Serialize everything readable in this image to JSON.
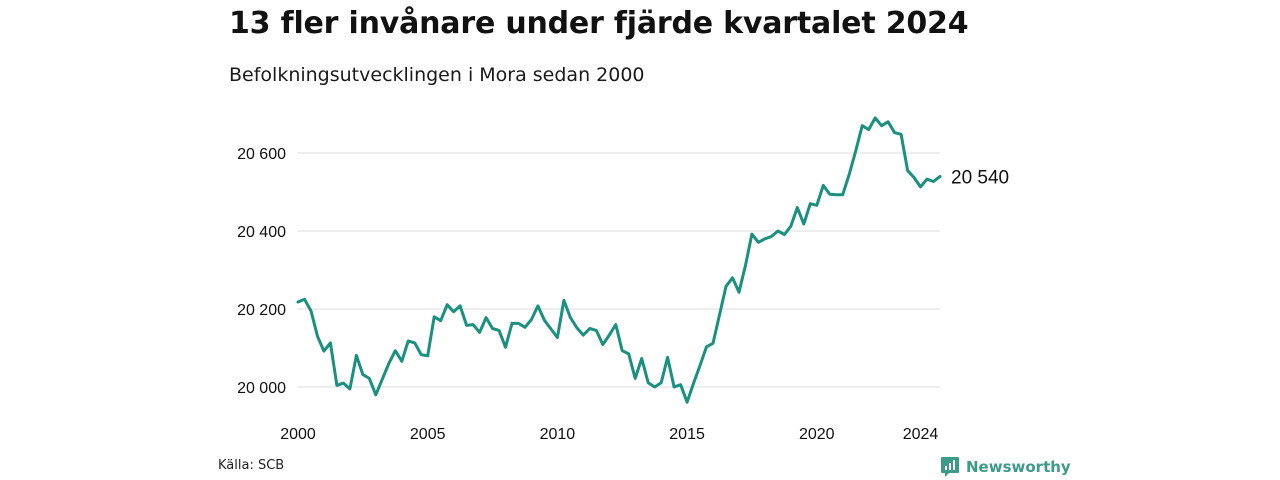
{
  "title": "13 fler invånare under fjärde kvartalet 2024",
  "subtitle": "Befolkningsutvecklingen i Mora sedan 2000",
  "source": "Källa: SCB",
  "brand": {
    "name": "Newsworthy",
    "icon": "newsworthy-logo-icon",
    "color": "#3d9b8a"
  },
  "colors": {
    "line": "#1a9080",
    "grid": "#dddddd"
  },
  "chart_data": {
    "type": "line",
    "title": "13 fler invånare under fjärde kvartalet 2024",
    "subtitle": "Befolkningsutvecklingen i Mora sedan 2000",
    "xlabel": "",
    "ylabel": "",
    "grid": true,
    "ylim": [
      19960,
      20690
    ],
    "xlim": [
      2000,
      2024.75
    ],
    "x_ticks": [
      2000,
      2005,
      2010,
      2015,
      2020,
      2024
    ],
    "x_tick_labels": [
      "2000",
      "2005",
      "2010",
      "2015",
      "2020",
      "2024"
    ],
    "y_ticks": [
      20000,
      20200,
      20400,
      20600
    ],
    "y_tick_labels": [
      "20 000",
      "20 200",
      "20 400",
      "20 600"
    ],
    "end_label": "20 540",
    "series": [
      {
        "x": [
          2000,
          2000.25,
          2000.5,
          2000.75,
          2001,
          2001.25,
          2001.5,
          2001.75,
          2002,
          2002.25,
          2002.5,
          2002.75,
          2003,
          2003.25,
          2003.5,
          2003.75,
          2004,
          2004.25,
          2004.5,
          2004.75,
          2005,
          2005.25,
          2005.5,
          2005.75,
          2006,
          2006.25,
          2006.5,
          2006.75,
          2007,
          2007.25,
          2007.5,
          2007.75,
          2008,
          2008.25,
          2008.5,
          2008.75,
          2009,
          2009.25,
          2009.5,
          2009.75,
          2010,
          2010.25,
          2010.5,
          2010.75,
          2011,
          2011.25,
          2011.5,
          2011.75,
          2012,
          2012.25,
          2012.5,
          2012.75,
          2013,
          2013.25,
          2013.5,
          2013.75,
          2014,
          2014.25,
          2014.5,
          2014.75,
          2015,
          2015.25,
          2015.5,
          2015.75,
          2016,
          2016.25,
          2016.5,
          2016.75,
          2017,
          2017.25,
          2017.5,
          2017.75,
          2018,
          2018.25,
          2018.5,
          2018.75,
          2019,
          2019.25,
          2019.5,
          2019.75,
          2020,
          2020.25,
          2020.5,
          2020.75,
          2021,
          2021.25,
          2021.5,
          2021.75,
          2022,
          2022.25,
          2022.5,
          2022.75,
          2023,
          2023.25,
          2023.5,
          2023.75,
          2024,
          2024.25,
          2024.5,
          2024.75
        ],
        "values": [
          20218,
          20225,
          20195,
          20130,
          20092,
          20113,
          20004,
          20010,
          19995,
          20081,
          20032,
          20022,
          19980,
          20020,
          20060,
          20093,
          20066,
          20118,
          20113,
          20083,
          20080,
          20180,
          20170,
          20211,
          20193,
          20208,
          20158,
          20160,
          20140,
          20178,
          20150,
          20145,
          20102,
          20163,
          20163,
          20153,
          20173,
          20208,
          20171,
          20149,
          20127,
          20222,
          20178,
          20152,
          20133,
          20150,
          20145,
          20109,
          20133,
          20160,
          20093,
          20085,
          20022,
          20073,
          20011,
          20000,
          20011,
          20076,
          20000,
          20006,
          19961,
          20010,
          20056,
          20103,
          20112,
          20185,
          20258,
          20280,
          20243,
          20312,
          20392,
          20371,
          20380,
          20386,
          20400,
          20391,
          20412,
          20460,
          20418,
          20470,
          20466,
          20517,
          20494,
          20493,
          20493,
          20545,
          20605,
          20670,
          20660,
          20690,
          20670,
          20680,
          20652,
          20648,
          20555,
          20537,
          20513,
          20533,
          20527,
          20540
        ]
      }
    ]
  }
}
